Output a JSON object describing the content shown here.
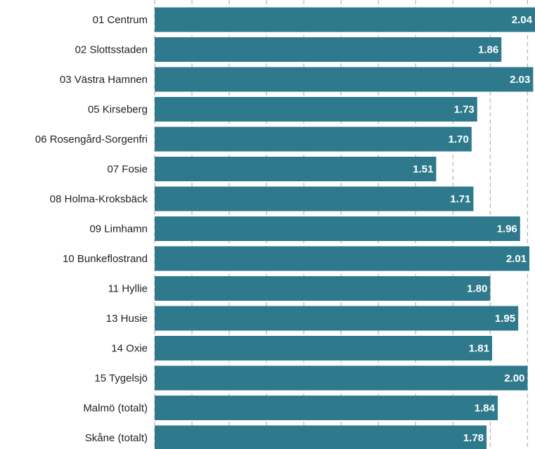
{
  "chart_data": {
    "type": "barh",
    "categories": [
      "01 Centrum",
      "02 Slottsstaden",
      "03 Västra Hamnen",
      "05 Kirseberg",
      "06 Rosengård-Sorgenfri",
      "07 Fosie",
      "08 Holma-Kroksbäck",
      "09 Limhamn",
      "10 Bunkeflostrand",
      "11 Hyllie",
      "13 Husie",
      "14 Oxie",
      "15 Tygelsjö",
      "Malmö (totalt)",
      "Skåne (totalt)"
    ],
    "values": [
      2.04,
      1.86,
      2.03,
      1.73,
      1.7,
      1.51,
      1.71,
      1.96,
      2.01,
      1.8,
      1.95,
      1.81,
      2.0,
      1.84,
      1.78
    ],
    "value_labels": [
      "2.04",
      "1.86",
      "2.03",
      "1.73",
      "1.70",
      "1.51",
      "1.71",
      "1.96",
      "2.01",
      "1.80",
      "1.95",
      "1.81",
      "2.00",
      "1.84",
      "1.78"
    ],
    "color": "#2e7a8c",
    "xlim": [
      0,
      2.04
    ],
    "xticks": [
      0,
      0.2,
      0.4,
      0.6,
      0.8,
      1.0,
      1.2,
      1.4,
      1.6,
      1.8,
      2.0
    ],
    "grid": true
  }
}
